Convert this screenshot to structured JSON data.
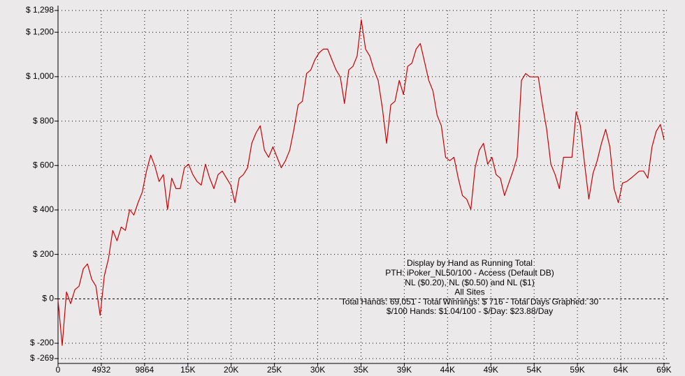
{
  "chart_data": {
    "type": "line",
    "color": "#cc0000",
    "grid": true,
    "annotation": [
      "Display by Hand as Running Total",
      "PTH: iPoker_NL50/100 - Access (Default DB)",
      "NL ($0.20), NL ($0.50) and NL ($1)",
      "All Sites",
      "Total Hands: 69,051 - Total Winnings: $ 716 - Total Days Graphed: 30",
      "$/100 Hands: $1.04/100 - $/Day: $23.88/Day"
    ],
    "xlim": [
      0,
      69051
    ],
    "xticks": [
      0,
      4932,
      9864,
      {
        "value": 14796,
        "label": "15K"
      },
      {
        "value": 19728,
        "label": "20K"
      },
      {
        "value": 24660,
        "label": "25K"
      },
      {
        "value": 29592,
        "label": "30K"
      },
      {
        "value": 34524,
        "label": "35K"
      },
      {
        "value": 39456,
        "label": "39K"
      },
      {
        "value": 44388,
        "label": "44K"
      },
      {
        "value": 49320,
        "label": "49K"
      },
      {
        "value": 54252,
        "label": "54K"
      },
      {
        "value": 59184,
        "label": "59K"
      },
      {
        "value": 64116,
        "label": "64K"
      },
      {
        "value": 69048,
        "label": "69K"
      }
    ],
    "ylim": [
      -269,
      1298
    ],
    "yticks": [
      {
        "value": -269,
        "label": "$ -269"
      },
      {
        "value": -200,
        "label": "$ -200"
      },
      {
        "value": 0,
        "label": "$ 0"
      },
      {
        "value": 200,
        "label": "$ 200"
      },
      {
        "value": 400,
        "label": "$ 400"
      },
      {
        "value": 600,
        "label": "$ 600"
      },
      {
        "value": 800,
        "label": "$ 800"
      },
      {
        "value": 1000,
        "label": "$ 1,000"
      },
      {
        "value": 1200,
        "label": "$ 1,200"
      },
      {
        "value": 1298,
        "label": "$ 1,298"
      }
    ],
    "x": [
      0,
      480,
      960,
      1440,
      1920,
      2400,
      2880,
      3360,
      3840,
      4320,
      4800,
      5280,
      5760,
      6240,
      6720,
      7200,
      7680,
      8160,
      8640,
      9120,
      9600,
      10080,
      10560,
      11040,
      11520,
      12000,
      12480,
      12960,
      13440,
      13920,
      14400,
      14880,
      15360,
      15840,
      16320,
      16800,
      17280,
      17760,
      18240,
      18720,
      19200,
      19680,
      20160,
      20640,
      21120,
      21600,
      22080,
      22560,
      23040,
      23520,
      24000,
      24480,
      24960,
      25440,
      25920,
      26400,
      26880,
      27360,
      27840,
      28320,
      28800,
      29280,
      29760,
      30240,
      30720,
      31200,
      31680,
      32160,
      32640,
      33120,
      33600,
      34080,
      34560,
      35040,
      35520,
      36000,
      36480,
      36960,
      37440,
      37920,
      38400,
      38880,
      39360,
      39840,
      40320,
      40800,
      41280,
      41760,
      42240,
      42720,
      43200,
      43680,
      44160,
      44640,
      45120,
      45600,
      46080,
      46560,
      47040,
      47520,
      48000,
      48480,
      48960,
      49440,
      49920,
      50400,
      50880,
      51360,
      51840,
      52320,
      52800,
      53280,
      53760,
      54240,
      54720,
      55200,
      55680,
      56160,
      56640,
      57120,
      57600,
      58080,
      58560,
      59040,
      59520,
      60000,
      60480,
      60960,
      61440,
      61920,
      62400,
      62880,
      63360,
      63840,
      64320,
      64800,
      65280,
      65760,
      66240,
      66720,
      67200,
      67680,
      68160,
      68640,
      69051
    ],
    "values": [
      -6,
      -210,
      31,
      -22,
      41,
      57,
      135,
      157,
      88,
      57,
      -75,
      104,
      182,
      308,
      261,
      323,
      308,
      402,
      377,
      433,
      480,
      575,
      647,
      597,
      528,
      559,
      402,
      543,
      496,
      496,
      590,
      606,
      559,
      528,
      512,
      606,
      543,
      496,
      559,
      575,
      543,
      512,
      433,
      543,
      559,
      590,
      700,
      747,
      779,
      669,
      637,
      684,
      637,
      590,
      622,
      669,
      763,
      873,
      889,
      1014,
      1030,
      1077,
      1108,
      1124,
      1124,
      1077,
      1030,
      999,
      879,
      1030,
      1046,
      1093,
      1256,
      1124,
      1093,
      1030,
      983,
      857,
      700,
      873,
      889,
      983,
      920,
      1046,
      1061,
      1124,
      1149,
      1068,
      983,
      936,
      826,
      779,
      637,
      622,
      637,
      543,
      465,
      449,
      402,
      590,
      669,
      700,
      606,
      637,
      559,
      543,
      465,
      521,
      575,
      637,
      983,
      1014,
      999,
      999,
      999,
      873,
      763,
      606,
      559,
      496,
      637,
      637,
      637,
      842,
      779,
      606,
      449,
      565,
      622,
      700,
      763,
      684,
      496,
      433,
      521,
      528,
      543,
      559,
      575,
      575,
      543,
      684,
      754,
      785,
      716
    ]
  }
}
